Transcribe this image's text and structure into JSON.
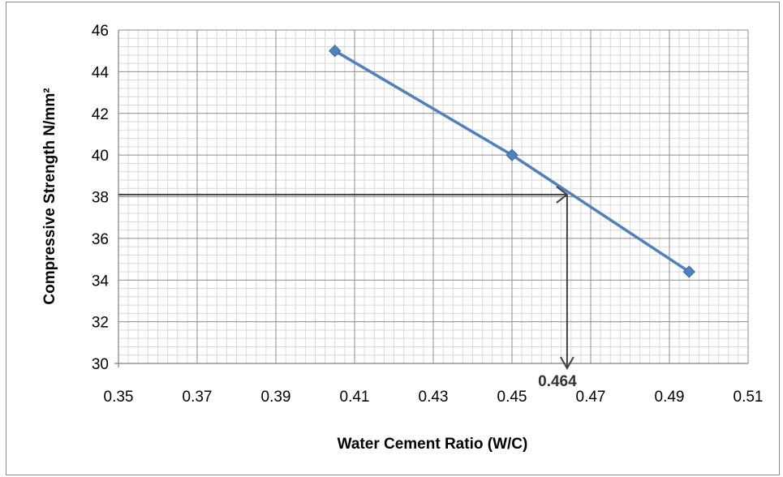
{
  "chart_data": {
    "type": "line",
    "title": "",
    "xlabel": "Water Cement Ratio (W/C)",
    "ylabel": "Compressive Strength N/mm²",
    "xlim": [
      0.35,
      0.51
    ],
    "ylim": [
      30,
      46
    ],
    "x_major_ticks": [
      0.35,
      0.37,
      0.39,
      0.41,
      0.43,
      0.45,
      0.47,
      0.49,
      0.51
    ],
    "x_tick_labels": [
      "0.35",
      "0.37",
      "0.39",
      "0.41",
      "0.43",
      "0.45",
      "0.47",
      "0.49",
      "0.51"
    ],
    "y_major_ticks": [
      30,
      32,
      34,
      36,
      38,
      40,
      42,
      44,
      46
    ],
    "y_tick_labels": [
      "30",
      "32",
      "34",
      "36",
      "38",
      "40",
      "42",
      "44",
      "46"
    ],
    "x_minor_step": 0.0025,
    "y_minor_step": 0.4,
    "grid": true,
    "legend": "none",
    "series": [
      {
        "x": [
          0.405,
          0.45,
          0.495
        ],
        "y": [
          45.0,
          40.0,
          34.4
        ],
        "color": "#4f81bd",
        "marker": "diamond"
      }
    ],
    "annotation": {
      "text": "0.464",
      "target_x": 0.464,
      "target_y": 38.1,
      "color": "#404040"
    }
  }
}
